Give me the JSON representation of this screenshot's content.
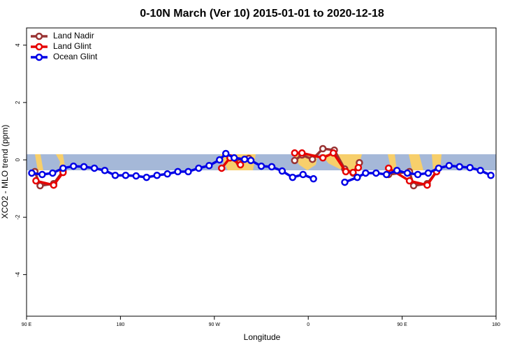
{
  "chart_data": {
    "type": "line",
    "title": "0-10N March (Ver 10)   2015-01-01 to 2020-12-18",
    "xlabel": "Longitude",
    "ylabel": "XCO2 - MLO trend (ppm)",
    "xlim": [
      90,
      540
    ],
    "ylim": [
      -5.45,
      4.6
    ],
    "xticks": [
      {
        "value": 90,
        "label": "90 E"
      },
      180,
      {
        "value": 270,
        "label": "90 W"
      },
      {
        "value": 360,
        "label": "0"
      },
      {
        "value": 450,
        "label": "90 E"
      },
      {
        "value": 540,
        "label": "180"
      }
    ],
    "yticks": [
      -4,
      -2,
      0,
      2,
      4
    ],
    "legend": "top-left",
    "series": [
      {
        "name": "Land Nadir",
        "color": "#993333",
        "x": [
          98,
          103,
          116,
          125,
          200,
          285,
          294,
          303,
          325,
          347,
          354,
          364,
          374,
          385,
          395,
          403,
          409,
          420,
          437,
          457,
          461,
          474,
          483
        ],
        "values": [
          -0.41,
          -0.9,
          -0.83,
          -0.39,
          null,
          0.07,
          -0.1,
          0.05,
          null,
          -0.02,
          0.17,
          0.02,
          0.39,
          0.34,
          -0.32,
          -0.46,
          -0.1,
          null,
          -0.51,
          -0.41,
          -0.9,
          -0.83,
          -0.41
        ]
      },
      {
        "name": "Land Glint",
        "color": "#e60000",
        "x": [
          99,
          116,
          125,
          200,
          277,
          285,
          295,
          325,
          347,
          354,
          374,
          384,
          396,
          403,
          408,
          420,
          437,
          457,
          474,
          483
        ],
        "values": [
          -0.73,
          -0.88,
          -0.44,
          null,
          -0.29,
          0.07,
          -0.17,
          null,
          0.24,
          0.24,
          0.07,
          0.24,
          -0.41,
          -0.44,
          -0.27,
          null,
          -0.29,
          -0.73,
          -0.88,
          -0.41
        ]
      },
      {
        "name": "Ocean Glint",
        "color": "#0000e6",
        "x": [
          95,
          105,
          115,
          125,
          135,
          145,
          155,
          165,
          175,
          185,
          195,
          205,
          215,
          225,
          235,
          245,
          255,
          265,
          275,
          281,
          289,
          299,
          305,
          315,
          325,
          335,
          345,
          355,
          365,
          380,
          395,
          407,
          415,
          425,
          435,
          445,
          455,
          465,
          475,
          485,
          495,
          505,
          515,
          525,
          535
        ],
        "values": [
          -0.46,
          -0.51,
          -0.46,
          -0.29,
          -0.22,
          -0.24,
          -0.29,
          -0.37,
          -0.54,
          -0.54,
          -0.56,
          -0.61,
          -0.54,
          -0.49,
          -0.41,
          -0.41,
          -0.29,
          -0.2,
          0,
          0.22,
          0.07,
          0.02,
          -0.02,
          -0.22,
          -0.24,
          -0.39,
          -0.61,
          -0.51,
          -0.66,
          null,
          -0.78,
          -0.61,
          -0.46,
          -0.46,
          -0.51,
          -0.37,
          -0.46,
          -0.51,
          -0.46,
          -0.29,
          -0.2,
          -0.24,
          -0.27,
          -0.37,
          -0.54
        ]
      }
    ]
  }
}
